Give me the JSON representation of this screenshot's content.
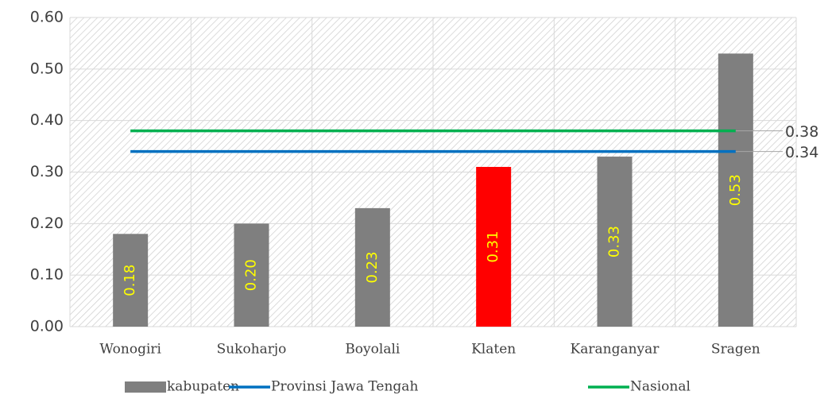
{
  "chart_data": {
    "type": "bar",
    "categories": [
      "Wonogiri",
      "Sukoharjo",
      "Boyolali",
      "Klaten",
      "Karanganyar",
      "Sragen"
    ],
    "series": [
      {
        "name": "kabupaten",
        "type": "bar",
        "color": "#7f7f7f",
        "colors": [
          "#7f7f7f",
          "#7f7f7f",
          "#7f7f7f",
          "#ff0000",
          "#7f7f7f",
          "#7f7f7f"
        ],
        "values": [
          0.18,
          0.2,
          0.23,
          0.31,
          0.33,
          0.53
        ],
        "value_labels": [
          "0.18",
          "0.20",
          "0.23",
          "0.31",
          "0.33",
          "0.53"
        ]
      },
      {
        "name": "Provinsi Jawa Tengah",
        "type": "line",
        "color": "#0070c0",
        "values": [
          0.34,
          0.34,
          0.34,
          0.34,
          0.34,
          0.34
        ],
        "value_labels": [
          null,
          null,
          null,
          null,
          null,
          "0.34"
        ]
      },
      {
        "name": "Nasional",
        "type": "line",
        "color": "#00b050",
        "values": [
          0.38,
          0.38,
          0.38,
          0.38,
          0.38,
          0.38
        ],
        "value_labels": [
          null,
          null,
          null,
          null,
          null,
          "0.38"
        ]
      }
    ],
    "ylim": [
      0,
      0.6
    ],
    "yticks": [
      {
        "value": 0,
        "label": "0.00"
      },
      {
        "value": 0.1,
        "label": "0.10"
      },
      {
        "value": 0.2,
        "label": "0.20"
      },
      {
        "value": 0.3,
        "label": "0.30"
      },
      {
        "value": 0.4,
        "label": "0.40"
      },
      {
        "value": 0.5,
        "label": "0.50"
      },
      {
        "value": 0.6,
        "label": "0.60"
      }
    ],
    "grid": true,
    "legend": "bottom"
  }
}
